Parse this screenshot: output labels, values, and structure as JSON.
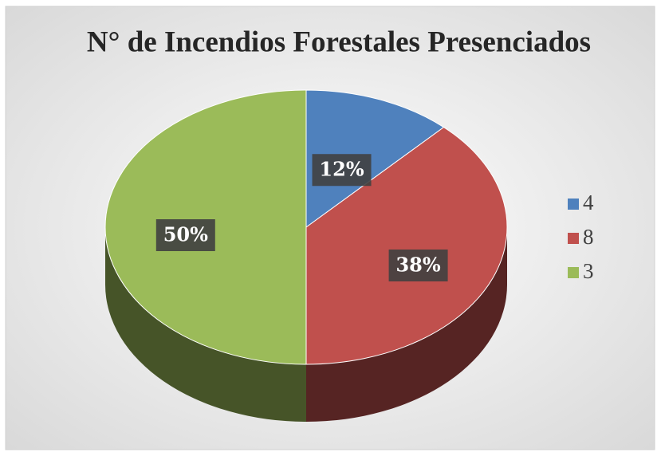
{
  "chart_data": {
    "type": "pie",
    "title": "N° de Incendios Forestales Presenciados",
    "categories": [
      "4",
      "8",
      "3"
    ],
    "values": [
      12,
      38,
      50
    ],
    "value_labels": [
      "12%",
      "38%",
      "50%"
    ],
    "colors": [
      "#4f81bd",
      "#c0504d",
      "#9bbb59"
    ],
    "legend": "right"
  }
}
